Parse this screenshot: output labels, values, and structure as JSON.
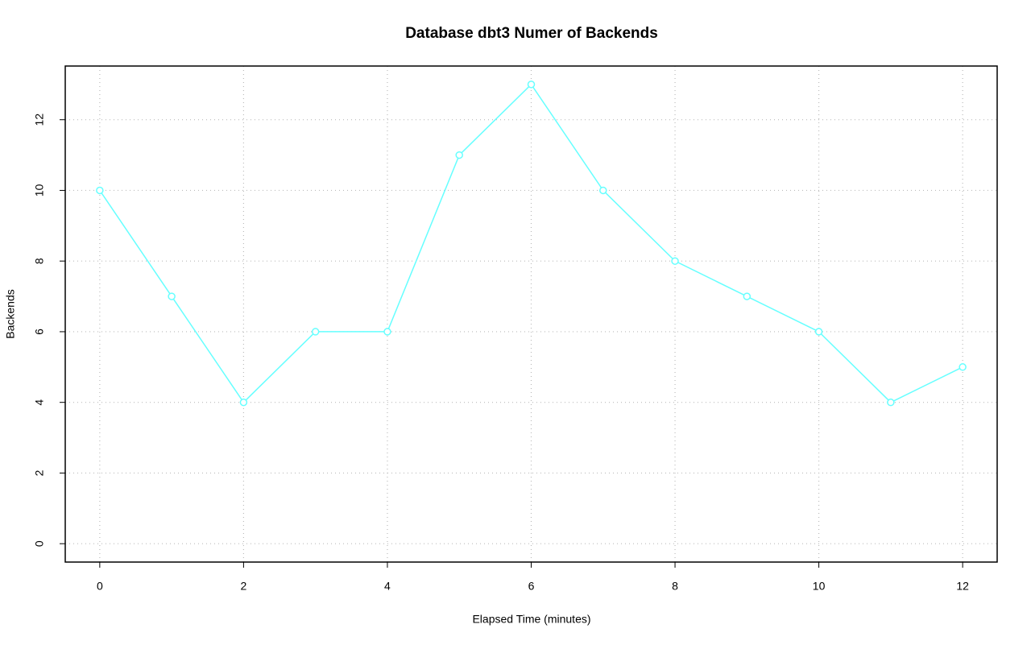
{
  "chart_data": {
    "type": "line",
    "title": "Database dbt3 Numer of Backends",
    "x_label": "Elapsed Time (minutes)",
    "y_label": "Backends",
    "x": [
      0,
      1,
      2,
      3,
      4,
      5,
      6,
      7,
      8,
      9,
      10,
      11,
      12
    ],
    "series": [
      {
        "name": "Backends",
        "color": "#66ffff",
        "values": [
          10,
          7,
          4,
          6,
          6,
          11,
          13,
          10,
          8,
          7,
          6,
          4,
          5
        ]
      }
    ],
    "xlim": [
      -0.48,
      12.48
    ],
    "xticks": [
      0,
      2,
      4,
      6,
      8,
      10,
      12
    ],
    "ylim": [
      -0.52,
      13.52
    ],
    "yticks": [
      0,
      2,
      4,
      6,
      8,
      10,
      12
    ],
    "grid": true
  }
}
